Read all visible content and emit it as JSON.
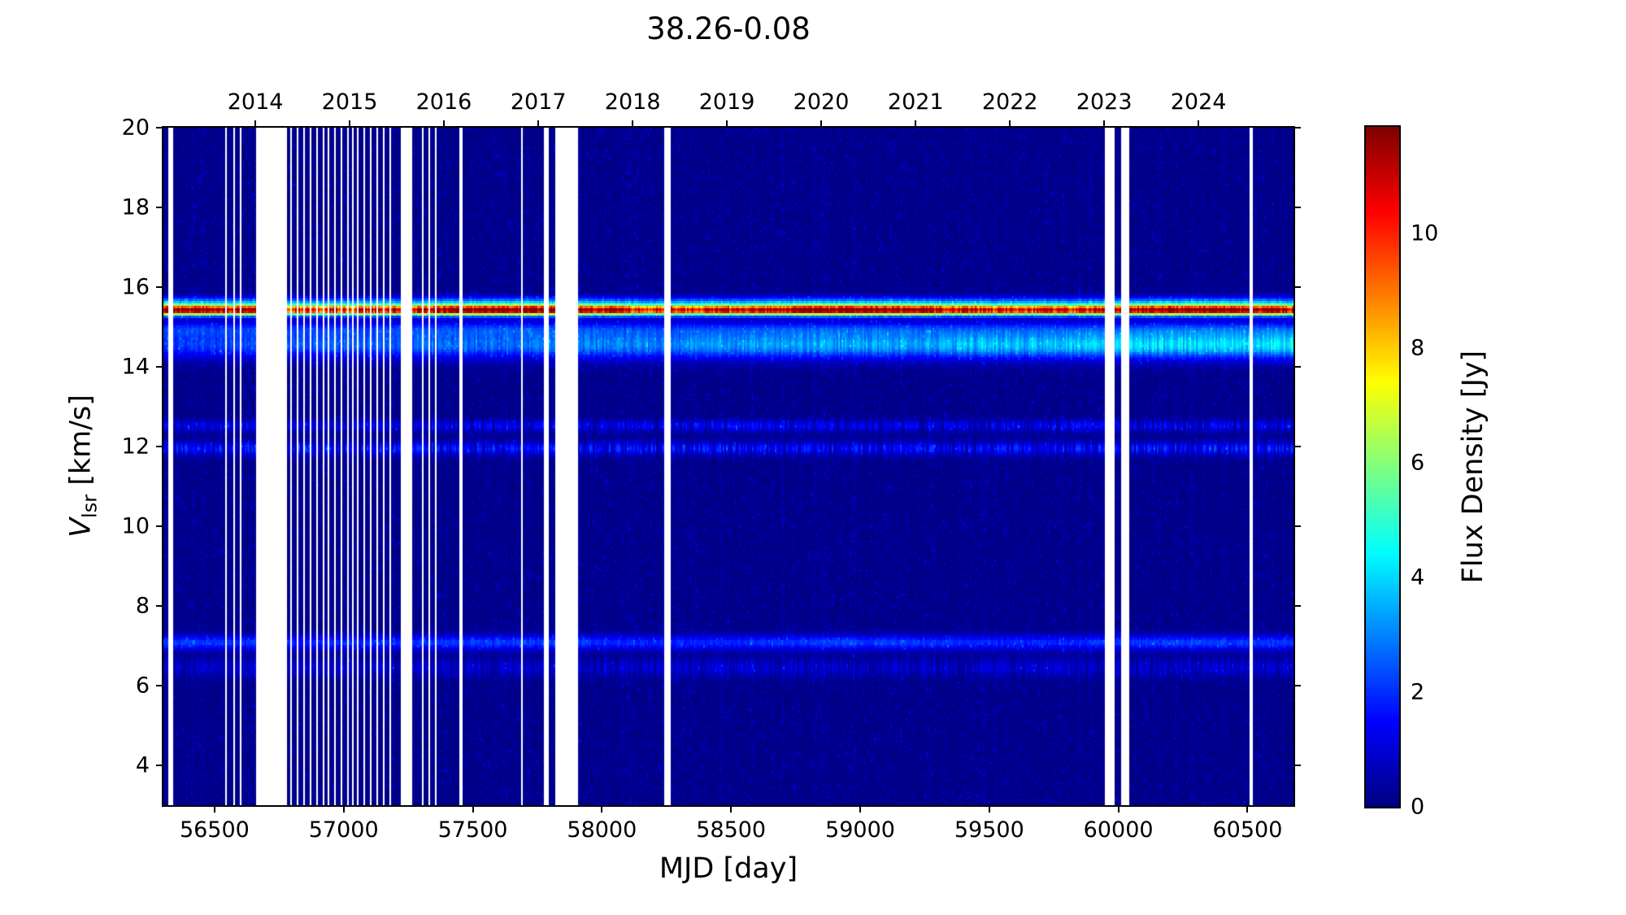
{
  "figure": {
    "title": "38.26-0.08"
  },
  "axes": {
    "xlabel": "MJD [day]",
    "ylabel_symbol": "V",
    "ylabel_subscript": "lsr",
    "ylabel_units": " [km/s]",
    "colorbar_label": "Flux Density [Jy]"
  },
  "chart_data": {
    "type": "heatmap",
    "title": "38.26-0.08",
    "xlabel": "MJD [day]",
    "ylabel": "V_lsr [km/s]",
    "colorbar_label": "Flux Density [Jy]",
    "colormap": "jet",
    "x_range_mjd": [
      56302,
      60678
    ],
    "y_range_kms": [
      3,
      20
    ],
    "flux_range_jy": [
      0,
      11.86
    ],
    "x_ticks_mjd": [
      56500,
      57000,
      57500,
      58000,
      58500,
      59000,
      59500,
      60000,
      60500
    ],
    "y_ticks_kms": [
      4,
      6,
      8,
      10,
      12,
      14,
      16,
      18,
      20
    ],
    "colorbar_ticks_jy": [
      0,
      2,
      4,
      6,
      8,
      10
    ],
    "top_axis_years": [
      {
        "label": "2014",
        "mjd": 56658
      },
      {
        "label": "2015",
        "mjd": 57023
      },
      {
        "label": "2016",
        "mjd": 57388
      },
      {
        "label": "2017",
        "mjd": 57754
      },
      {
        "label": "2018",
        "mjd": 58119
      },
      {
        "label": "2019",
        "mjd": 58484
      },
      {
        "label": "2020",
        "mjd": 58849
      },
      {
        "label": "2021",
        "mjd": 59215
      },
      {
        "label": "2022",
        "mjd": 59580
      },
      {
        "label": "2023",
        "mjd": 59945
      },
      {
        "label": "2024",
        "mjd": 60310
      }
    ],
    "noise_sigma_jy": 0.3,
    "spectral_features": [
      {
        "velocity_kms": 15.42,
        "sigma_kms": 0.09,
        "peak_flux_jy": 11.3,
        "trend": "stable",
        "note": "bright primary maser line (red)"
      },
      {
        "velocity_kms": 15.62,
        "sigma_kms": 0.1,
        "peak_flux_jy": 2.6,
        "trend": "stable",
        "note": "shoulder above main line"
      },
      {
        "velocity_kms": 14.55,
        "sigma_kms": 0.24,
        "peak_flux_jy": 3.6,
        "trend": "increasing",
        "note": "broad cyan band"
      },
      {
        "velocity_kms": 14.95,
        "sigma_kms": 0.14,
        "peak_flux_jy": 1.5,
        "trend": "stable",
        "note": "blue bridge between bands"
      },
      {
        "velocity_kms": 12.52,
        "sigma_kms": 0.1,
        "peak_flux_jy": 1.25,
        "trend": "intermittent",
        "note": "faint speckled band"
      },
      {
        "velocity_kms": 11.95,
        "sigma_kms": 0.12,
        "peak_flux_jy": 1.6,
        "trend": "intermittent",
        "note": "faint blue band"
      },
      {
        "velocity_kms": 7.08,
        "sigma_kms": 0.13,
        "peak_flux_jy": 1.9,
        "trend": "stable",
        "note": "narrow blue band"
      },
      {
        "velocity_kms": 6.45,
        "sigma_kms": 0.16,
        "peak_flux_jy": 0.85,
        "trend": "intermittent",
        "note": "very faint band"
      }
    ],
    "data_gaps_mjd": [
      [
        56318,
        56338
      ],
      [
        56540,
        56548
      ],
      [
        56570,
        56580
      ],
      [
        56595,
        56603
      ],
      [
        56660,
        56778
      ],
      [
        56794,
        56800
      ],
      [
        56819,
        56826
      ],
      [
        56844,
        56851
      ],
      [
        56869,
        56876
      ],
      [
        56894,
        56901
      ],
      [
        56919,
        56926
      ],
      [
        56939,
        56946
      ],
      [
        56964,
        56971
      ],
      [
        56989,
        56996
      ],
      [
        57014,
        57021
      ],
      [
        57033,
        57040
      ],
      [
        57052,
        57059
      ],
      [
        57077,
        57084
      ],
      [
        57102,
        57109
      ],
      [
        57128,
        57135
      ],
      [
        57153,
        57160
      ],
      [
        57178,
        57185
      ],
      [
        57224,
        57268
      ],
      [
        57303,
        57310
      ],
      [
        57328,
        57335
      ],
      [
        57353,
        57360
      ],
      [
        57450,
        57458
      ],
      [
        57685,
        57692
      ],
      [
        57778,
        57792
      ],
      [
        57822,
        57908
      ],
      [
        58241,
        58264
      ],
      [
        59950,
        59988
      ],
      [
        60008,
        60042
      ],
      [
        60506,
        60518
      ]
    ]
  }
}
